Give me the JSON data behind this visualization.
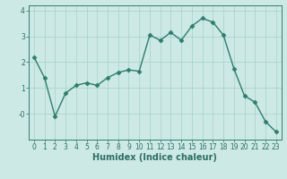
{
  "x": [
    0,
    1,
    2,
    3,
    4,
    5,
    6,
    7,
    8,
    9,
    10,
    11,
    12,
    13,
    14,
    15,
    16,
    17,
    18,
    19,
    20,
    21,
    22,
    23
  ],
  "y": [
    2.2,
    1.4,
    -0.1,
    0.8,
    1.1,
    1.2,
    1.1,
    1.4,
    1.6,
    1.7,
    1.65,
    3.05,
    2.85,
    3.15,
    2.85,
    3.4,
    3.7,
    3.55,
    3.05,
    1.75,
    0.7,
    0.45,
    -0.3,
    -0.7
  ],
  "line_color": "#2e7d6e",
  "marker": "D",
  "marker_size": 2.5,
  "bg_color": "#cce9e5",
  "grid_color": "#aed4cf",
  "xlabel": "Humidex (Indice chaleur)",
  "ylim": [
    -1.0,
    4.2
  ],
  "xlim": [
    -0.5,
    23.5
  ],
  "yticks": [
    0,
    1,
    2,
    3,
    4
  ],
  "ytick_labels": [
    "-0",
    "1",
    "2",
    "3",
    "4"
  ],
  "xticks": [
    0,
    1,
    2,
    3,
    4,
    5,
    6,
    7,
    8,
    9,
    10,
    11,
    12,
    13,
    14,
    15,
    16,
    17,
    18,
    19,
    20,
    21,
    22,
    23
  ],
  "font_color": "#2e6e63",
  "linewidth": 1.0,
  "tick_fontsize": 5.5,
  "xlabel_fontsize": 7.0
}
